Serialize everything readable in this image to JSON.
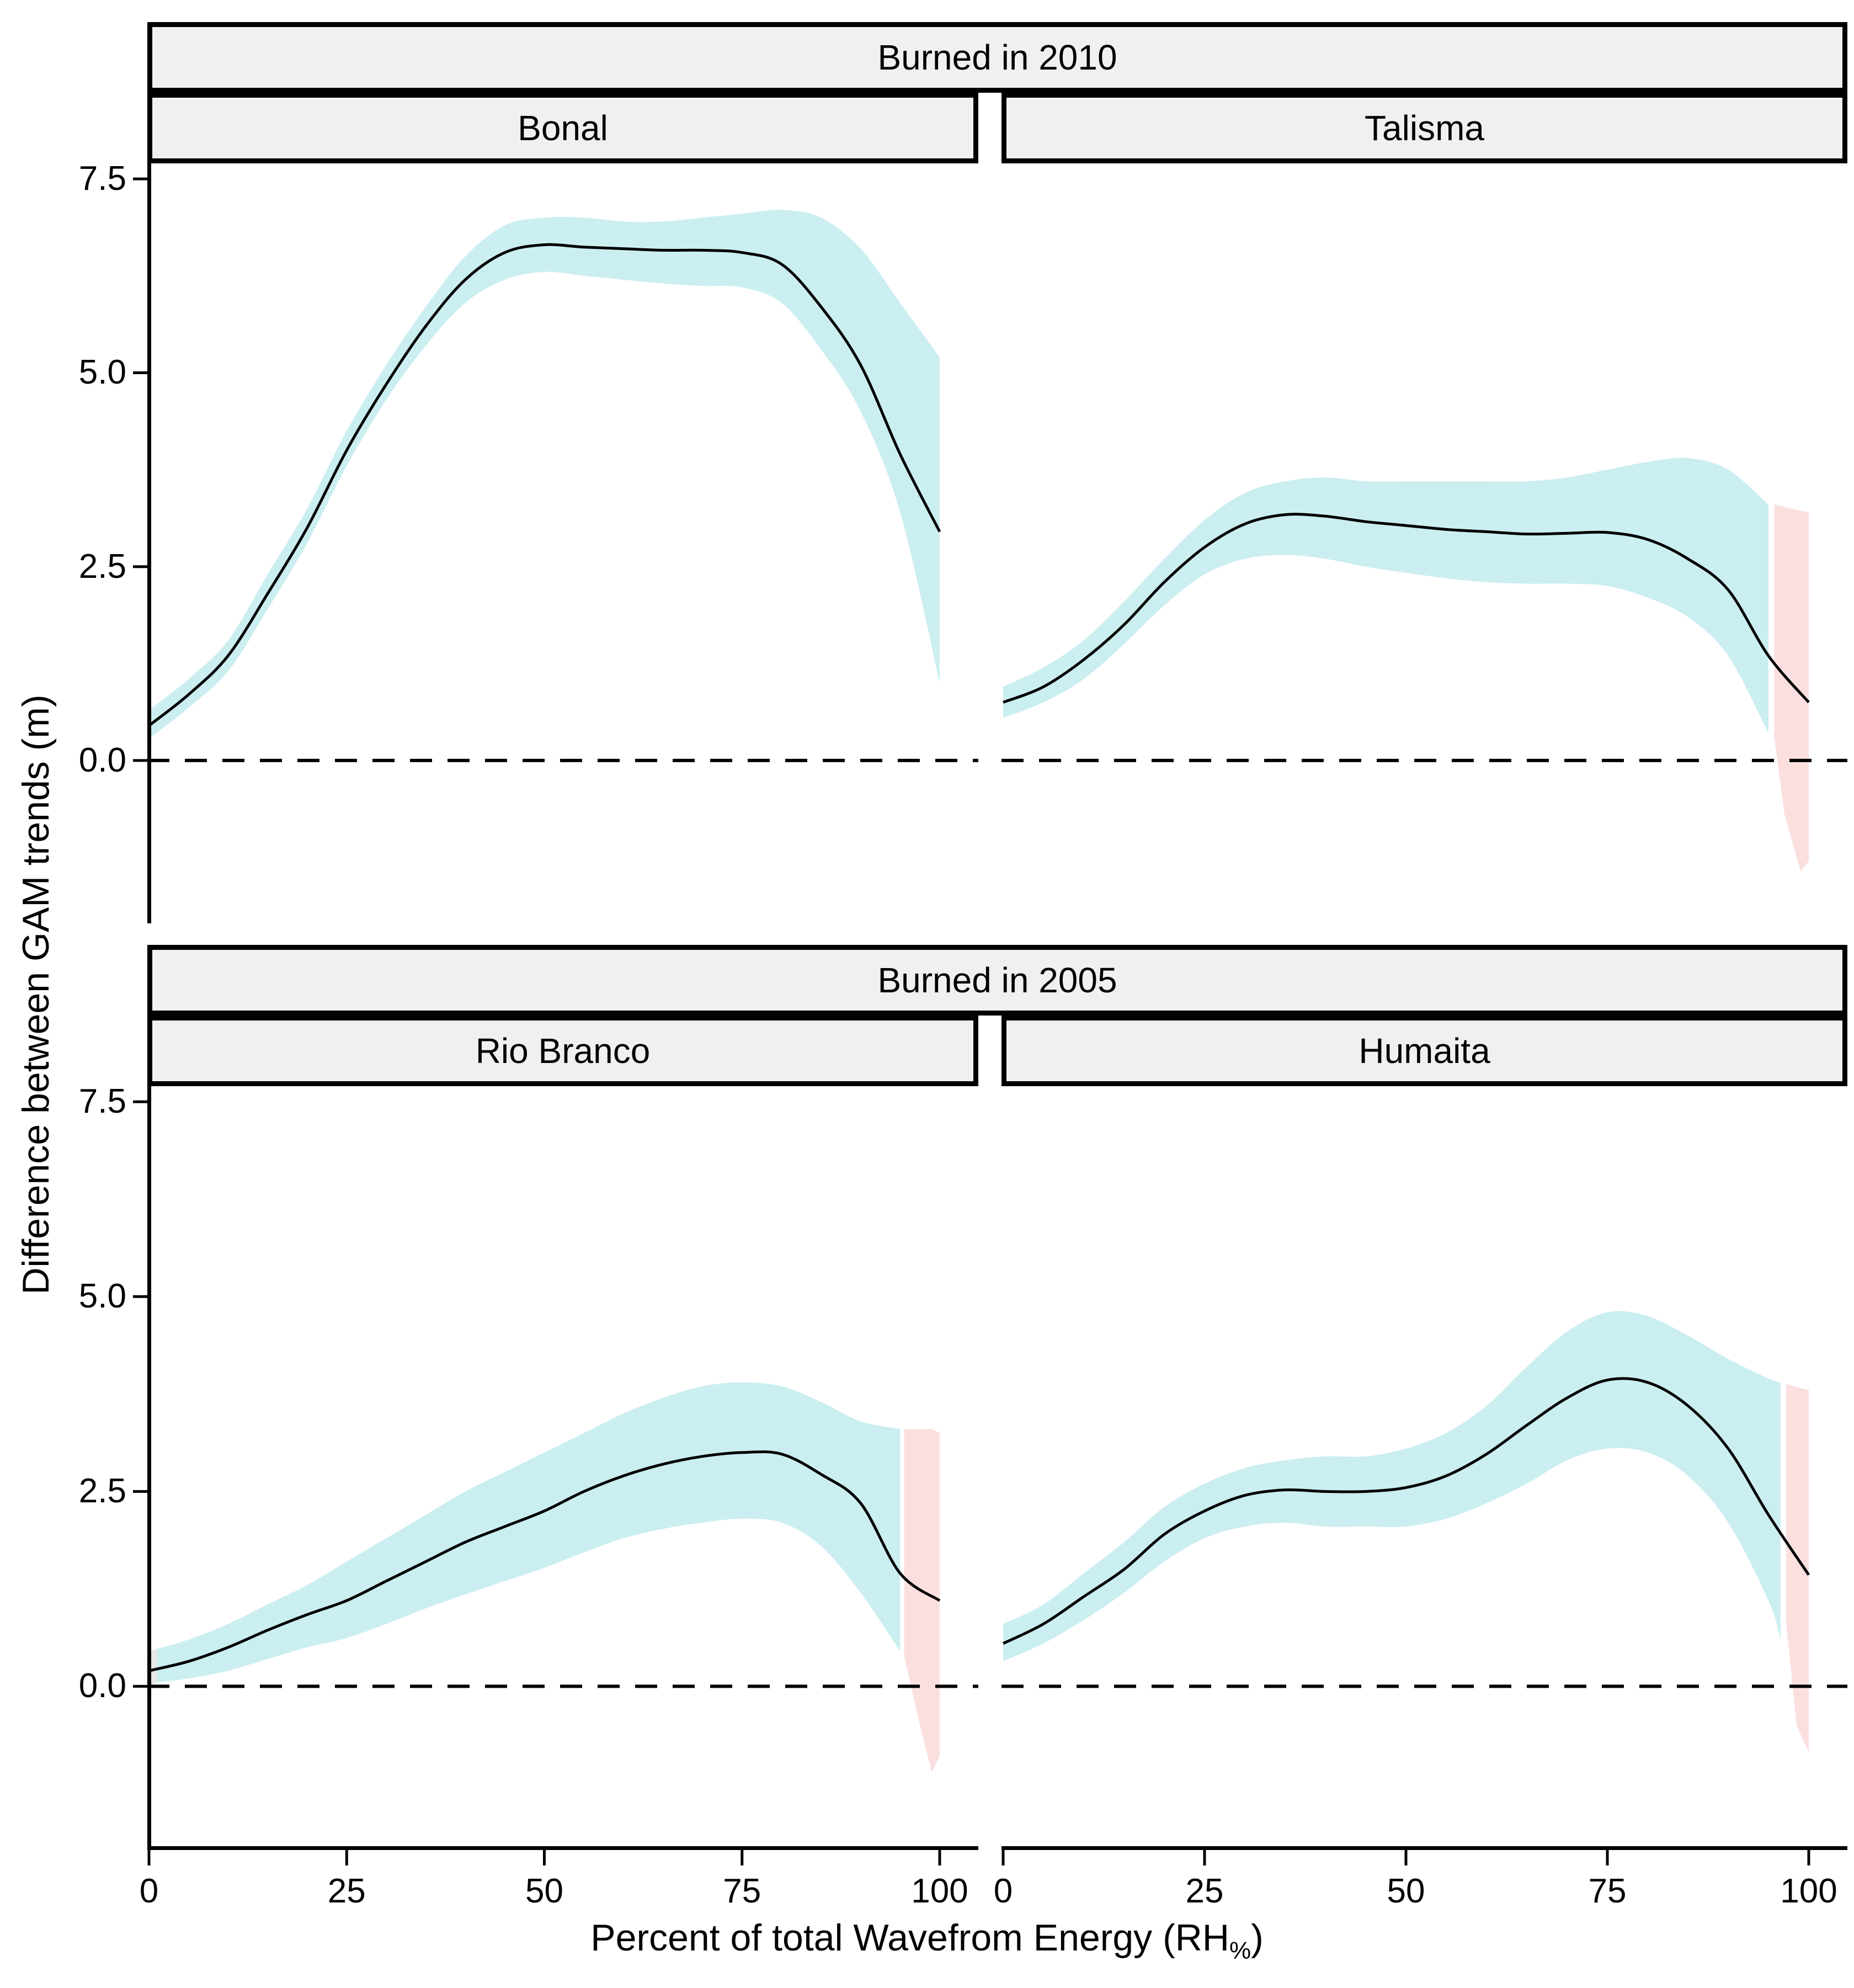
{
  "figure": {
    "y_axis_title": "Difference between GAM trends (m)",
    "x_axis_title": {
      "prefix": "Percent of total Wavefrom Energy (RH",
      "subscript": "%",
      "suffix": ")"
    },
    "y_ticks": [
      7.5,
      5.0,
      2.5,
      0.0
    ],
    "x_ticks": [
      0,
      25,
      50,
      75,
      100
    ],
    "colors": {
      "ci": "#CBEEF1",
      "ns": "#FBDFDF",
      "edge": "#E7E7E7",
      "line": "#000000",
      "strip_bg": "#F0F0F0",
      "panel_bg": "#FFFFFF",
      "axis": "#000000"
    }
  },
  "chart_data": [
    {
      "type": "line",
      "key": "bonal",
      "group": "Burned in 2010",
      "site": "Bonal",
      "xlim": [
        0,
        100
      ],
      "ylim": [
        -2.1,
        7.7
      ],
      "zero_reference_line": 0,
      "x": [
        0,
        5,
        10,
        15,
        20,
        25,
        30,
        35,
        40,
        45,
        50,
        55,
        60,
        65,
        70,
        75,
        80,
        85,
        90,
        95,
        100
      ],
      "mean": [
        0.45,
        0.85,
        1.35,
        2.15,
        3.0,
        4.0,
        4.85,
        5.6,
        6.2,
        6.55,
        6.65,
        6.62,
        6.6,
        6.58,
        6.58,
        6.55,
        6.4,
        5.85,
        5.1,
        3.95,
        2.95
      ],
      "ribbons": [
        {
          "name": "ci-band",
          "color": "ci",
          "smooth": true,
          "x": [
            0,
            5,
            10,
            15,
            20,
            25,
            30,
            35,
            40,
            45,
            50,
            55,
            60,
            65,
            70,
            75,
            80,
            85,
            90,
            95,
            100
          ],
          "lower": [
            0.28,
            0.68,
            1.15,
            1.95,
            2.8,
            3.8,
            4.65,
            5.35,
            5.9,
            6.2,
            6.3,
            6.25,
            6.2,
            6.15,
            6.12,
            6.1,
            5.9,
            5.3,
            4.5,
            3.2,
            1.0
          ],
          "upper": [
            0.65,
            1.05,
            1.55,
            2.4,
            3.25,
            4.25,
            5.1,
            5.85,
            6.5,
            6.9,
            7.0,
            7.0,
            6.95,
            6.95,
            7.0,
            7.05,
            7.1,
            7.0,
            6.6,
            5.9,
            5.2
          ]
        }
      ]
    },
    {
      "type": "line",
      "key": "talisma",
      "group": "Burned in 2010",
      "site": "Talisma",
      "xlim": [
        0,
        100
      ],
      "ylim": [
        -2.1,
        7.7
      ],
      "zero_reference_line": 0,
      "x": [
        0,
        5,
        10,
        15,
        20,
        25,
        30,
        35,
        40,
        45,
        50,
        55,
        60,
        65,
        70,
        75,
        80,
        85,
        90,
        95,
        100
      ],
      "mean": [
        0.75,
        0.95,
        1.3,
        1.75,
        2.3,
        2.75,
        3.05,
        3.17,
        3.15,
        3.08,
        3.03,
        2.98,
        2.95,
        2.92,
        2.93,
        2.94,
        2.85,
        2.6,
        2.2,
        1.35,
        0.75
      ],
      "ribbons": [
        {
          "name": "ci-band",
          "color": "ci",
          "smooth": true,
          "x": [
            0,
            5,
            10,
            15,
            20,
            25,
            30,
            35,
            40,
            45,
            50,
            55,
            60,
            65,
            70,
            75,
            80,
            85,
            90,
            95
          ],
          "lower": [
            0.55,
            0.75,
            1.05,
            1.5,
            2.0,
            2.4,
            2.6,
            2.65,
            2.6,
            2.5,
            2.42,
            2.35,
            2.3,
            2.28,
            2.28,
            2.25,
            2.1,
            1.85,
            1.35,
            0.35
          ],
          "upper": [
            0.95,
            1.2,
            1.55,
            2.05,
            2.6,
            3.1,
            3.45,
            3.6,
            3.65,
            3.6,
            3.6,
            3.6,
            3.6,
            3.6,
            3.65,
            3.75,
            3.85,
            3.9,
            3.75,
            3.3
          ]
        },
        {
          "name": "ns-band-right",
          "color": "ns",
          "smooth": false,
          "x": [
            95.7,
            97,
            99,
            100
          ],
          "lower": [
            0.3,
            -0.7,
            -1.43,
            -1.3
          ],
          "upper": [
            3.3,
            3.27,
            3.22,
            3.2
          ]
        }
      ]
    },
    {
      "type": "line",
      "key": "rio",
      "group": "Burned in 2005",
      "site": "Rio Branco",
      "xlim": [
        0,
        100
      ],
      "ylim": [
        -2.1,
        7.7
      ],
      "zero_reference_line": 0,
      "x": [
        0,
        5,
        10,
        15,
        20,
        25,
        30,
        35,
        40,
        45,
        50,
        55,
        60,
        65,
        70,
        75,
        80,
        85,
        90,
        95,
        100
      ],
      "mean": [
        0.2,
        0.32,
        0.5,
        0.72,
        0.92,
        1.1,
        1.35,
        1.6,
        1.85,
        2.05,
        2.25,
        2.5,
        2.7,
        2.85,
        2.95,
        3.0,
        2.98,
        2.72,
        2.35,
        1.45,
        1.1
      ],
      "ribbons": [
        {
          "name": "ci-band",
          "color": "ci",
          "smooth": true,
          "x": [
            1,
            5,
            10,
            15,
            20,
            25,
            30,
            35,
            40,
            45,
            50,
            55,
            60,
            65,
            70,
            75,
            80,
            85,
            90,
            95
          ],
          "lower": [
            0.05,
            0.1,
            0.2,
            0.35,
            0.5,
            0.62,
            0.8,
            1.0,
            1.18,
            1.35,
            1.52,
            1.72,
            1.9,
            2.02,
            2.1,
            2.15,
            2.1,
            1.8,
            1.2,
            0.45
          ],
          "upper": [
            0.48,
            0.6,
            0.8,
            1.05,
            1.3,
            1.6,
            1.9,
            2.2,
            2.5,
            2.75,
            3.0,
            3.25,
            3.5,
            3.7,
            3.85,
            3.9,
            3.85,
            3.65,
            3.4,
            3.3
          ]
        },
        {
          "name": "edge-band-left",
          "color": "edge",
          "smooth": false,
          "x": [
            0,
            1
          ],
          "lower": [
            0.0,
            0.05
          ],
          "upper": [
            0.45,
            0.48
          ]
        },
        {
          "name": "ns-band-right",
          "color": "ns",
          "smooth": false,
          "x": [
            95.5,
            97.5,
            99,
            100
          ],
          "lower": [
            0.4,
            -0.5,
            -1.1,
            -0.9
          ],
          "upper": [
            3.3,
            3.3,
            3.3,
            3.25
          ]
        }
      ]
    },
    {
      "type": "line",
      "key": "humaita",
      "group": "Burned in 2005",
      "site": "Humaita",
      "xlim": [
        0,
        100
      ],
      "ylim": [
        -2.1,
        7.7
      ],
      "zero_reference_line": 0,
      "x": [
        0,
        5,
        10,
        15,
        20,
        25,
        30,
        35,
        40,
        45,
        50,
        55,
        60,
        65,
        70,
        75,
        80,
        85,
        90,
        95,
        100
      ],
      "mean": [
        0.55,
        0.8,
        1.15,
        1.5,
        1.95,
        2.25,
        2.45,
        2.52,
        2.5,
        2.5,
        2.55,
        2.7,
        2.98,
        3.35,
        3.7,
        3.93,
        3.9,
        3.6,
        3.05,
        2.2,
        1.43
      ],
      "ribbons": [
        {
          "name": "ci-band",
          "color": "ci",
          "smooth": true,
          "x": [
            0,
            5,
            10,
            15,
            20,
            25,
            30,
            35,
            40,
            45,
            50,
            55,
            60,
            65,
            70,
            75,
            80,
            85,
            90,
            95,
            96.5
          ],
          "lower": [
            0.32,
            0.55,
            0.85,
            1.2,
            1.6,
            1.9,
            2.05,
            2.1,
            2.05,
            2.05,
            2.05,
            2.15,
            2.35,
            2.6,
            2.9,
            3.05,
            3.0,
            2.7,
            2.1,
            1.1,
            0.6
          ],
          "upper": [
            0.8,
            1.05,
            1.45,
            1.85,
            2.3,
            2.6,
            2.8,
            2.9,
            2.95,
            2.95,
            3.05,
            3.25,
            3.6,
            4.1,
            4.55,
            4.8,
            4.75,
            4.5,
            4.2,
            3.95,
            3.9
          ]
        },
        {
          "name": "ns-band-right",
          "color": "ns",
          "smooth": false,
          "x": [
            97.2,
            98.5,
            100
          ],
          "lower": [
            0.8,
            -0.5,
            -0.85
          ],
          "upper": [
            3.88,
            3.84,
            3.8
          ]
        }
      ]
    }
  ]
}
